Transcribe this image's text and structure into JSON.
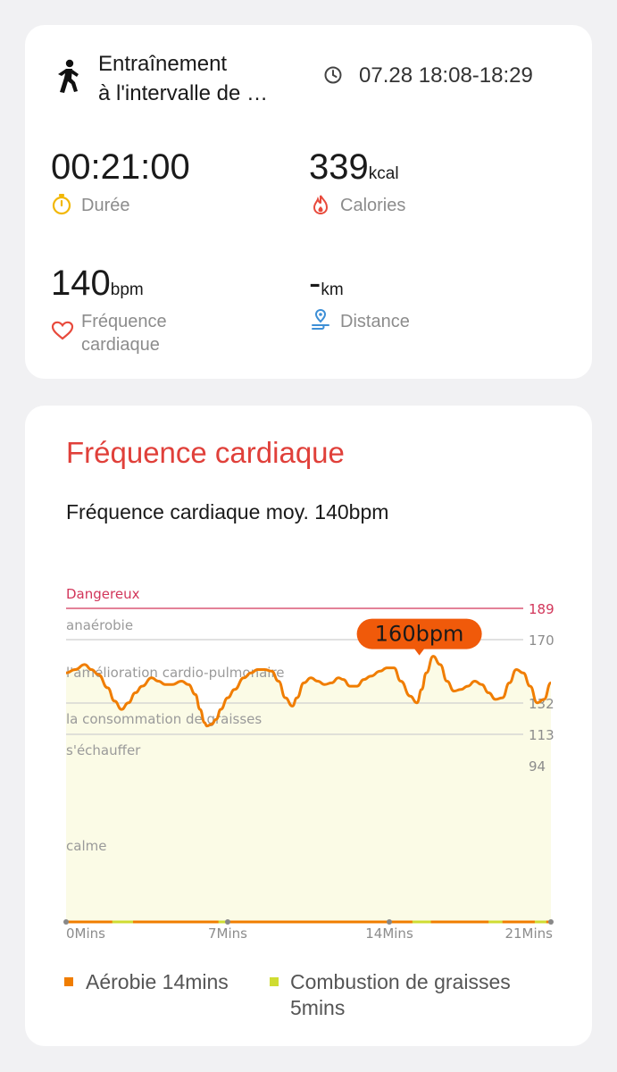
{
  "summary": {
    "activity_icon": "running-person-icon",
    "title_line1": "Entraînement",
    "title_line2": "à l'intervalle de …",
    "clock_icon": "clock-icon",
    "time": "07.28 18:08-18:29",
    "duration": {
      "value": "00:21:00",
      "label": "Durée",
      "icon": "stopwatch-icon",
      "color": "#f2b705"
    },
    "calories": {
      "value": "339",
      "unit": "kcal",
      "label": "Calories",
      "icon": "flame-icon",
      "color": "#e84a3c"
    },
    "heart_rate": {
      "value": "140",
      "unit": "bpm",
      "label_line1": "Fréquence",
      "label_line2": "cardiaque",
      "icon": "heart-icon",
      "color": "#e84a3c"
    },
    "distance": {
      "value": "-",
      "unit": "km",
      "label": "Distance",
      "icon": "route-pin-icon",
      "color": "#3d8fd6"
    }
  },
  "heart_section": {
    "title": "Fréquence cardiaque",
    "average": "Fréquence cardiaque moy. 140bpm",
    "peak_label": "160bpm",
    "colors": {
      "accent": "#e0403a",
      "line": "#f07d00",
      "fill": "#fbfbe6",
      "danger": "#d2365a",
      "peak": "#f05a0a"
    }
  },
  "chart_data": {
    "type": "line",
    "xlabel": "",
    "ylabel": "",
    "x_ticks": [
      "0Mins",
      "7Mins",
      "14Mins",
      "21Mins"
    ],
    "xlim": [
      0,
      21
    ],
    "zones": [
      {
        "name": "Dangereux",
        "value": 189
      },
      {
        "name": "anaérobie",
        "value": 170
      },
      {
        "name": "l'amélioration cardio-pulmonaire",
        "value": 151
      },
      {
        "name": "la consommation de graisses",
        "value": 132
      },
      {
        "name": "s'échauffer",
        "value": 113
      },
      {
        "name": "calme",
        "value": 94
      }
    ],
    "y_ticks": [
      "189",
      "170",
      "132",
      "113",
      "94"
    ],
    "peak": {
      "x": 15.3,
      "y": 160
    },
    "series": [
      {
        "x": [
          0.0,
          0.4,
          0.8,
          1.1,
          1.4,
          1.8,
          2.1,
          2.4,
          2.7,
          3.0,
          3.3,
          3.7,
          4.0,
          4.3,
          4.6,
          5.0,
          5.3,
          5.6,
          5.8,
          6.0,
          6.1,
          6.3,
          6.5,
          6.7,
          7.0,
          7.3,
          7.7,
          8.0,
          8.3,
          8.6,
          8.9,
          9.2,
          9.5,
          9.8,
          10.0,
          10.3,
          10.6,
          10.9,
          11.2,
          11.5,
          11.8,
          12.0,
          12.3,
          12.6,
          12.9,
          13.2,
          13.6,
          13.9,
          14.2,
          14.5,
          14.9,
          15.2,
          15.4,
          15.6,
          15.9,
          16.2,
          16.5,
          16.8,
          17.1,
          17.4,
          17.7,
          18.0,
          18.3,
          18.6,
          18.9,
          19.2,
          19.5,
          19.8,
          20.1,
          20.4,
          20.7,
          21.0
        ],
        "y": [
          150,
          152,
          155,
          152,
          149,
          141,
          133,
          128,
          132,
          138,
          142,
          147,
          145,
          143,
          143,
          145,
          143,
          137,
          128,
          120,
          118,
          119,
          122,
          128,
          135,
          140,
          147,
          150,
          152,
          152,
          151,
          145,
          135,
          130,
          135,
          144,
          147,
          145,
          143,
          144,
          147,
          146,
          142,
          142,
          146,
          148,
          151,
          153,
          153,
          145,
          136,
          132,
          140,
          150,
          160,
          155,
          145,
          139,
          140,
          142,
          145,
          143,
          138,
          134,
          135,
          144,
          152,
          150,
          142,
          132,
          134,
          144
        ]
      }
    ],
    "legend": [
      {
        "label_line1": "Aérobie 14mins",
        "label_line2": "",
        "color": "#f07d00"
      },
      {
        "label_line1": "Combustion de graisses",
        "label_line2": "5mins",
        "color": "#cfdc32"
      }
    ]
  }
}
